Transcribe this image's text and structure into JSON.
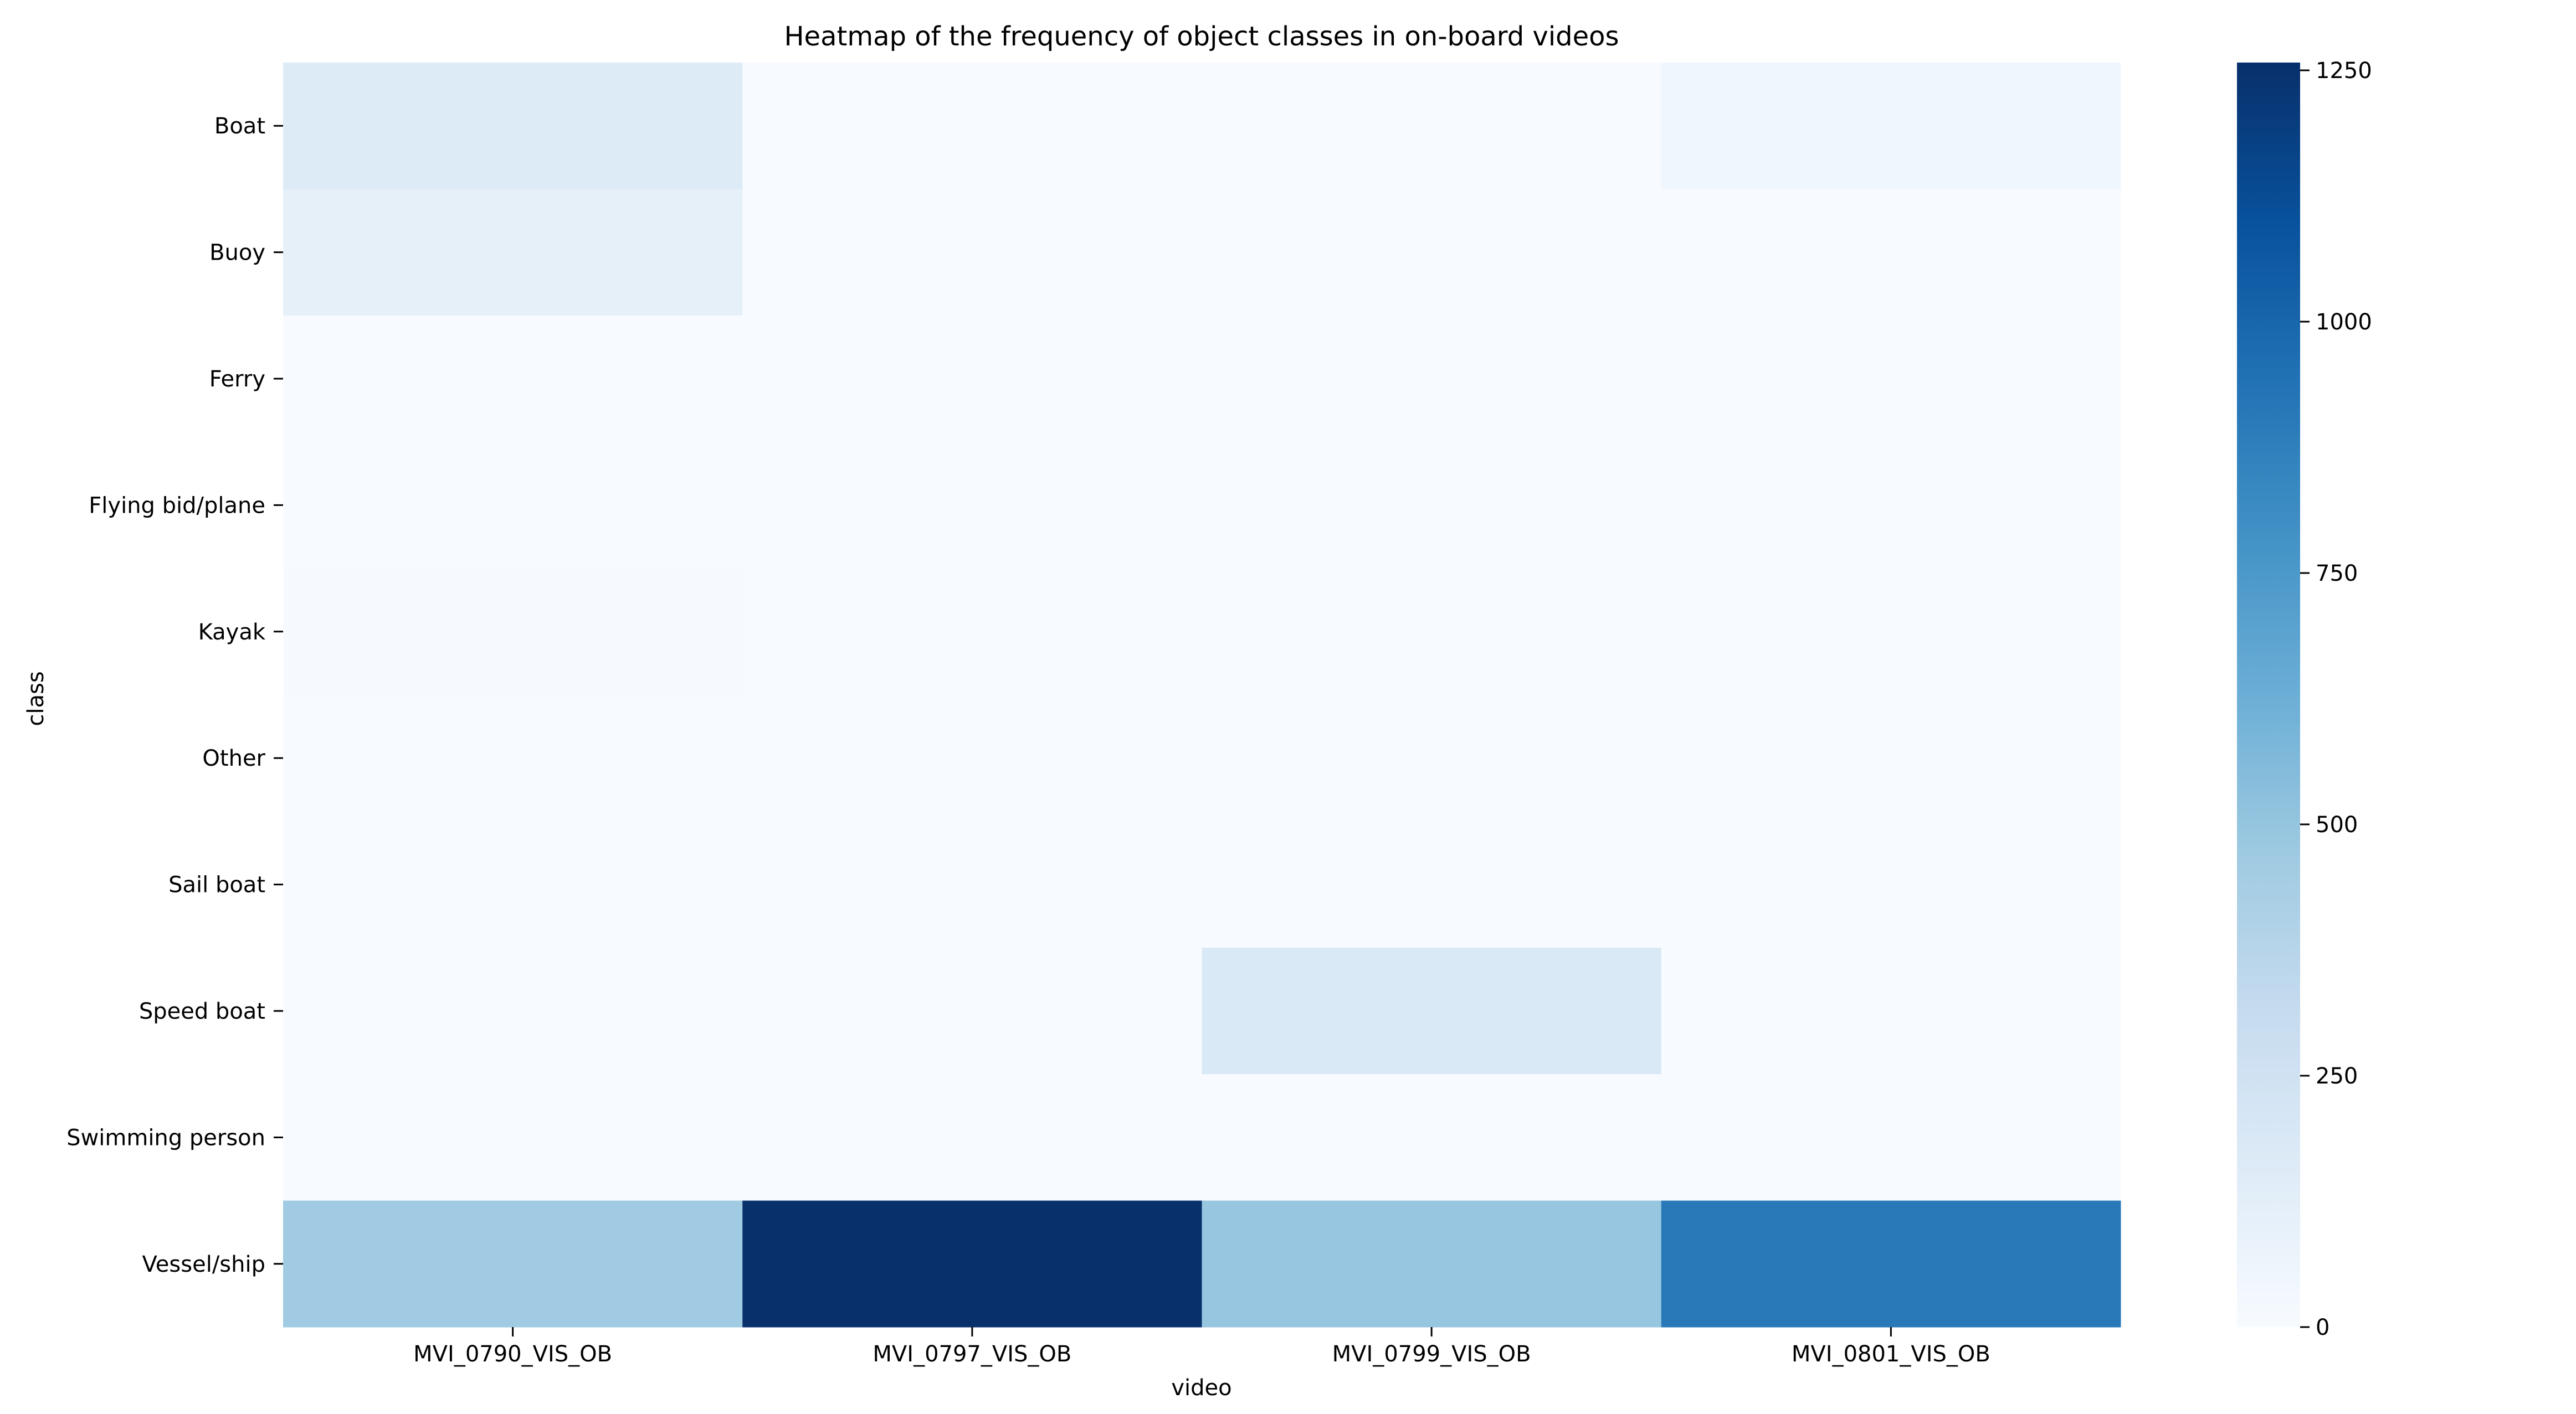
{
  "chart_data": {
    "type": "heatmap",
    "title": "Heatmap of the frequency of object classes in on-board videos",
    "xlabel": "video",
    "ylabel": "class",
    "x_categories": [
      "MVI_0790_VIS_OB",
      "MVI_0797_VIS_OB",
      "MVI_0799_VIS_OB",
      "MVI_0801_VIS_OB"
    ],
    "y_categories": [
      "Boat",
      "Buoy",
      "Ferry",
      "Flying bid/plane",
      "Kayak",
      "Other",
      "Sail boat",
      "Speed boat",
      "Swimming person",
      "Vessel/ship"
    ],
    "values": [
      [
        160,
        0,
        3,
        45
      ],
      [
        110,
        0,
        0,
        0
      ],
      [
        0,
        0,
        0,
        0
      ],
      [
        0,
        0,
        0,
        0
      ],
      [
        5,
        0,
        0,
        0
      ],
      [
        0,
        0,
        0,
        0
      ],
      [
        0,
        0,
        2,
        0
      ],
      [
        0,
        0,
        180,
        0
      ],
      [
        0,
        0,
        0,
        0
      ],
      [
        460,
        1250,
        490,
        900
      ]
    ],
    "colorbar": {
      "range": [
        0,
        1250
      ],
      "ticks": [
        0,
        250,
        500,
        750,
        1000,
        1250
      ],
      "colormap": "Blues",
      "low_color": "#f7fbff",
      "high_color": "#08306b"
    },
    "grid": false,
    "legend": "colorbar right"
  }
}
